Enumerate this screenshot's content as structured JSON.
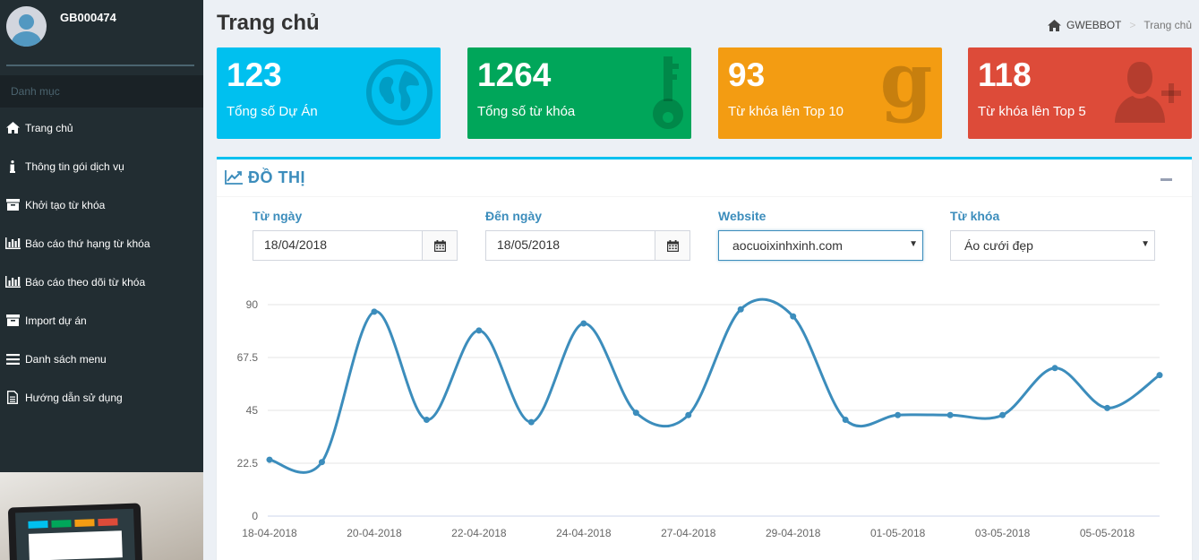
{
  "sidebar": {
    "username": "GB000474",
    "menu_header": "Danh mục",
    "items": [
      {
        "label": "Trang chủ",
        "icon": "home-icon"
      },
      {
        "label": "Thông tin gói dịch vụ",
        "icon": "info-icon"
      },
      {
        "label": "Khởi tạo từ khóa",
        "icon": "archive-icon"
      },
      {
        "label": "Báo cáo thứ hạng từ khóa",
        "icon": "bar-chart-icon"
      },
      {
        "label": "Báo cáo theo dõi từ khóa",
        "icon": "bar-chart-icon"
      },
      {
        "label": "Import dự án",
        "icon": "archive-icon"
      },
      {
        "label": "Danh sách menu",
        "icon": "list-icon"
      },
      {
        "label": "Hướng dẫn sử dụng",
        "icon": "file-icon"
      }
    ]
  },
  "header": {
    "title": "Trang chủ",
    "breadcrumb": {
      "home": "GWEBBOT",
      "current": "Trang chủ"
    }
  },
  "stats": [
    {
      "value": "123",
      "label": "Tổng số Dự Án",
      "color": "#00c0ef",
      "icon": "globe-icon"
    },
    {
      "value": "1264",
      "label": "Tổng số từ khóa",
      "color": "#00a65a",
      "icon": "key-icon"
    },
    {
      "value": "93",
      "label": "Từ khóa lên Top 10",
      "color": "#f39c12",
      "icon": "google-icon"
    },
    {
      "value": "118",
      "label": "Từ khóa lên Top 5",
      "color": "#dd4b39",
      "icon": "user-plus-icon"
    }
  ],
  "graph_panel": {
    "title": "ĐỒ THỊ",
    "from_label": "Từ ngày",
    "from_value": "18/04/2018",
    "to_label": "Đến ngày",
    "to_value": "18/05/2018",
    "website_label": "Website",
    "website_value": "aocuoixinhxinh.com",
    "keyword_label": "Từ khóa",
    "keyword_value": "Áo cưới đẹp"
  },
  "chart_data": {
    "type": "line",
    "x": [
      "18-04-2018",
      "19-04-2018",
      "20-04-2018",
      "21-04-2018",
      "22-04-2018",
      "23-04-2018",
      "24-04-2018",
      "26-04-2018",
      "27-04-2018",
      "28-04-2018",
      "29-04-2018",
      "30-04-2018",
      "01-05-2018",
      "02-05-2018",
      "03-05-2018",
      "04-05-2018",
      "05-05-2018",
      "06-05-2018"
    ],
    "x_tick_labels": [
      "18-04-2018",
      "20-04-2018",
      "22-04-2018",
      "24-04-2018",
      "27-04-2018",
      "29-04-2018",
      "01-05-2018",
      "03-05-2018",
      "05-05-2018"
    ],
    "series": [
      {
        "values": [
          24,
          23,
          87,
          41,
          79,
          40,
          82,
          44,
          43,
          88,
          85,
          41,
          43,
          43,
          43,
          63,
          46,
          60
        ],
        "color": "#3c8dbc"
      }
    ],
    "y_ticks": [
      0,
      22.5,
      45,
      67.5,
      90
    ],
    "ylim": [
      0,
      90
    ],
    "grid": true
  }
}
